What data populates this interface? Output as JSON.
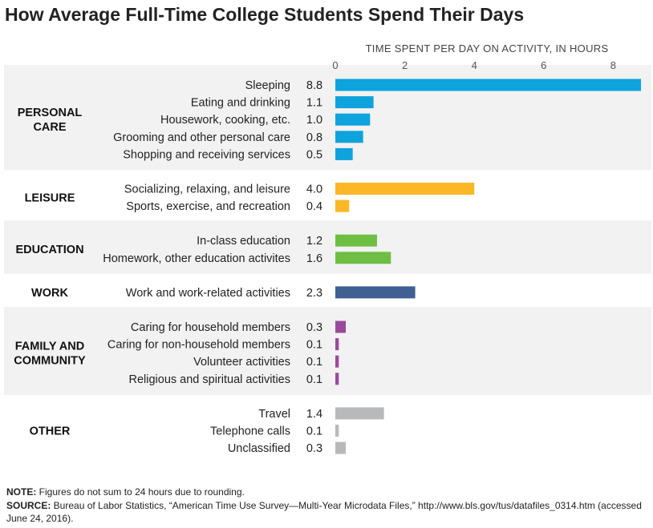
{
  "chart_data": {
    "type": "bar",
    "orientation": "horizontal",
    "title": "How Average Full-Time College Students Spend Their Days",
    "axis_title": "TIME SPENT PER DAY ON ACTIVITY, IN HOURS",
    "xlim": [
      0,
      8.8
    ],
    "xticks": [
      "0",
      "2",
      "4",
      "6",
      "8"
    ],
    "groups": [
      {
        "name": "PERSONAL CARE",
        "lines": [
          "PERSONAL",
          "CARE"
        ],
        "color": "#0ea3dc",
        "items": [
          {
            "label": "Sleeping",
            "value": 8.8,
            "text": "8.8"
          },
          {
            "label": "Eating and drinking",
            "value": 1.1,
            "text": "1.1"
          },
          {
            "label": "Housework, cooking, etc.",
            "value": 1.0,
            "text": "1.0"
          },
          {
            "label": "Grooming and other personal care",
            "value": 0.8,
            "text": "0.8"
          },
          {
            "label": "Shopping and receiving services",
            "value": 0.5,
            "text": "0.5"
          }
        ]
      },
      {
        "name": "LEISURE",
        "lines": [
          "LEISURE"
        ],
        "color": "#fbb726",
        "items": [
          {
            "label": "Socializing, relaxing, and leisure",
            "value": 4.0,
            "text": "4.0"
          },
          {
            "label": "Sports, exercise, and recreation",
            "value": 0.4,
            "text": "0.4"
          }
        ]
      },
      {
        "name": "EDUCATION",
        "lines": [
          "EDUCATION"
        ],
        "color": "#6fbe44",
        "items": [
          {
            "label": "In-class education",
            "value": 1.2,
            "text": "1.2"
          },
          {
            "label": "Homework, other education activites",
            "value": 1.6,
            "text": "1.6"
          }
        ]
      },
      {
        "name": "WORK",
        "lines": [
          "WORK"
        ],
        "color": "#405f93",
        "items": [
          {
            "label": "Work and work-related activities",
            "value": 2.3,
            "text": "2.3"
          }
        ]
      },
      {
        "name": "FAMILY AND COMMUNITY",
        "lines": [
          "FAMILY AND",
          "COMMUNITY"
        ],
        "color": "#9a4a9c",
        "items": [
          {
            "label": "Caring for household members",
            "value": 0.3,
            "text": "0.3"
          },
          {
            "label": "Caring for non-household members",
            "value": 0.1,
            "text": "0.1"
          },
          {
            "label": "Volunteer activities",
            "value": 0.1,
            "text": "0.1"
          },
          {
            "label": "Religious and spiritual activities",
            "value": 0.1,
            "text": "0.1"
          }
        ]
      },
      {
        "name": "OTHER",
        "lines": [
          "OTHER"
        ],
        "color": "#b8b9bb",
        "items": [
          {
            "label": "Travel",
            "value": 1.4,
            "text": "1.4"
          },
          {
            "label": "Telephone calls",
            "value": 0.1,
            "text": "0.1"
          },
          {
            "label": "Unclassified",
            "value": 0.3,
            "text": "0.3"
          }
        ]
      }
    ],
    "band_color": "#f2f2f2"
  },
  "notes": {
    "note_label": "NOTE:",
    "note_text": " Figures do not sum to 24 hours due to rounding.",
    "source_label": "SOURCE:",
    "source_text": " Bureau of Labor Statistics, “American Time Use Survey—Multi-Year Microdata Files,” http://www.bls.gov/tus/datafiles_0314.htm (accessed June 24, 2016)."
  }
}
